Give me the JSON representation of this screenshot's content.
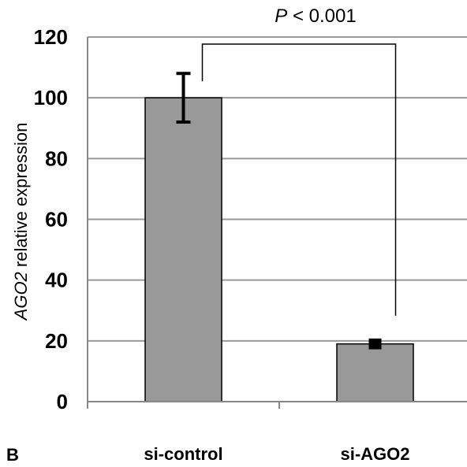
{
  "chart_data": {
    "type": "bar",
    "categories": [
      "si-control",
      "si-AGO2"
    ],
    "values": [
      100,
      19
    ],
    "error": [
      8,
      1
    ],
    "ylim": [
      0,
      120
    ],
    "yticks": [
      0,
      20,
      40,
      60,
      80,
      100,
      120
    ],
    "grid": true,
    "ylabel_italic": "AGO2",
    "ylabel_rest": " relative expression",
    "significance": {
      "italic": "P",
      "rest": " < 0.001",
      "between": [
        0,
        1
      ]
    },
    "panel_label": "B",
    "colors": {
      "bar": "#999999",
      "grid": "#999999",
      "axis": "#888888",
      "error": "#000000"
    }
  }
}
